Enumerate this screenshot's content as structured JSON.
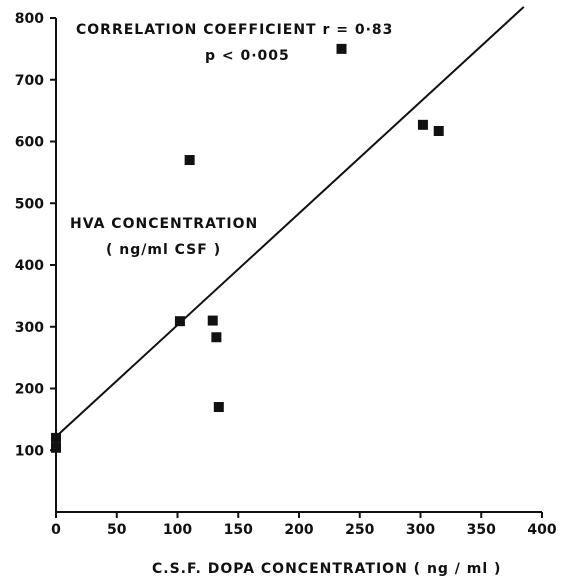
{
  "chart_data": {
    "type": "scatter",
    "xlabel": "C.S.F. DOPA CONCENTRATION  ( ng / ml )",
    "ylabel_lines": [
      "HVA CONCENTRATION",
      "( ng/ml CSF )"
    ],
    "annotation_lines": [
      "CORRELATION  COEFFICIENT  r = 0·83",
      "p < 0·005"
    ],
    "xlim": [
      0,
      400
    ],
    "ylim": [
      0,
      800
    ],
    "x_ticks": [
      0,
      50,
      100,
      150,
      200,
      250,
      300,
      350,
      400
    ],
    "y_ticks": [
      100,
      200,
      300,
      400,
      500,
      600,
      700,
      800
    ],
    "points": [
      {
        "x": 0,
        "y": 120
      },
      {
        "x": 0,
        "y": 104
      },
      {
        "x": 102,
        "y": 309
      },
      {
        "x": 110,
        "y": 570
      },
      {
        "x": 129,
        "y": 310
      },
      {
        "x": 132,
        "y": 283
      },
      {
        "x": 134,
        "y": 170
      },
      {
        "x": 235,
        "y": 750
      },
      {
        "x": 302,
        "y": 627
      },
      {
        "x": 315,
        "y": 617
      }
    ],
    "regression_line": {
      "x": [
        0,
        385
      ],
      "y": [
        122,
        818
      ]
    },
    "grid": false,
    "legend": "none"
  }
}
